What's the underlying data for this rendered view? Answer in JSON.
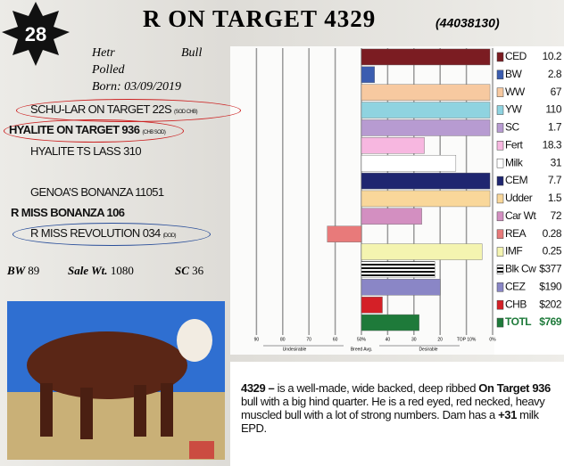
{
  "header": {
    "lot": "28",
    "title": "R ON TARGET 4329",
    "registration": "(44038130)",
    "sex_left": "Hetr",
    "sex_right": "Bull",
    "polled": "Polled",
    "born": "Born: 03/09/2019"
  },
  "pedigree": [
    {
      "name": "SCHU-LAR ON TARGET 22S",
      "tag": "(SOD CHB)"
    },
    {
      "name": "HYALITE ON TARGET 936",
      "tag": "(CHB SOD)"
    },
    {
      "name": "HYALITE TS LASS 310"
    },
    {
      "name": "GENOA’S BONANZA 11051"
    },
    {
      "name": "R MISS BONANZA 106"
    },
    {
      "name": "R MISS REVOLUTION 034",
      "tag": "(DOD)"
    }
  ],
  "stats": [
    {
      "label": "BW",
      "value": "89"
    },
    {
      "label": "Sale Wt.",
      "value": "1080"
    },
    {
      "label": "SC",
      "value": "36"
    }
  ],
  "chart_data": {
    "type": "bar",
    "orientation": "horizontal",
    "categories": [
      "CED",
      "BW",
      "WW",
      "YW",
      "SC",
      "Fert",
      "Milk",
      "CEM",
      "Udder",
      "Car Wt",
      "REA",
      "IMF",
      "Blk Cw",
      "CEZ",
      "CHB",
      "TOTL"
    ],
    "epd_values": [
      "10.2",
      "2.8",
      "67",
      "110",
      "1.7",
      "18.3",
      "31",
      "7.7",
      "1.5",
      "72",
      "0.28",
      "0.25",
      "$377",
      "$190",
      "$202",
      "$769"
    ],
    "values": [
      1,
      45,
      1,
      1,
      1,
      26,
      14,
      1,
      1,
      27,
      63,
      4,
      22,
      20,
      42,
      28
    ],
    "colors": [
      "#7b1c22",
      "#3b5db0",
      "#f7c9a0",
      "#8fd3e0",
      "#b79bd1",
      "#f7b7e0",
      "#ffffff",
      "#1f2670",
      "#f9d79a",
      "#d38fc1",
      "#e87a7a",
      "#f4f4b0",
      "url(#stripes)",
      "#8a86c6",
      "#d42027",
      "#1e7a3a"
    ],
    "base": 50,
    "xlim": [
      100,
      0
    ],
    "xticks": [
      90,
      80,
      70,
      60,
      {
        "value": 50,
        "label": "50%"
      },
      40,
      30,
      20,
      {
        "value": 10,
        "label": "TOP 10%"
      },
      {
        "value": 0,
        "label": "0%"
      }
    ],
    "axis_left": "Undesirable",
    "axis_center": "Breed Avg.",
    "axis_right": "Desirable",
    "grid": true
  },
  "description": [
    "4329 –",
    " is a well-made, wide backed, deep ribbed ",
    "On Target 936",
    " bull with a big hind quarter. He is a red eyed, red necked, heavy muscled bull with a lot of strong numbers. Dam has a ",
    "+31",
    " milk EPD."
  ]
}
